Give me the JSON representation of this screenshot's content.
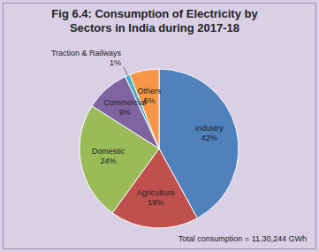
{
  "chart_data": {
    "type": "pie",
    "title": "Fig 6.4: Consumption of Electricity by Sectors in India during 2017-18",
    "categories": [
      "Industry",
      "Agriculture",
      "Domestic",
      "Commercial",
      "Traction & Railways",
      "Others"
    ],
    "values": [
      42,
      18,
      24,
      9,
      1,
      6
    ],
    "value_labels": [
      "42%",
      "18%",
      "24%",
      "9%",
      "1%",
      "6%"
    ],
    "colors": [
      "#4f81bd",
      "#c0504d",
      "#9bbb59",
      "#8064a2",
      "#4bacc6",
      "#f79646"
    ],
    "data_labels": true,
    "annotation": "Total consumption = 11,30,244 GWh"
  }
}
